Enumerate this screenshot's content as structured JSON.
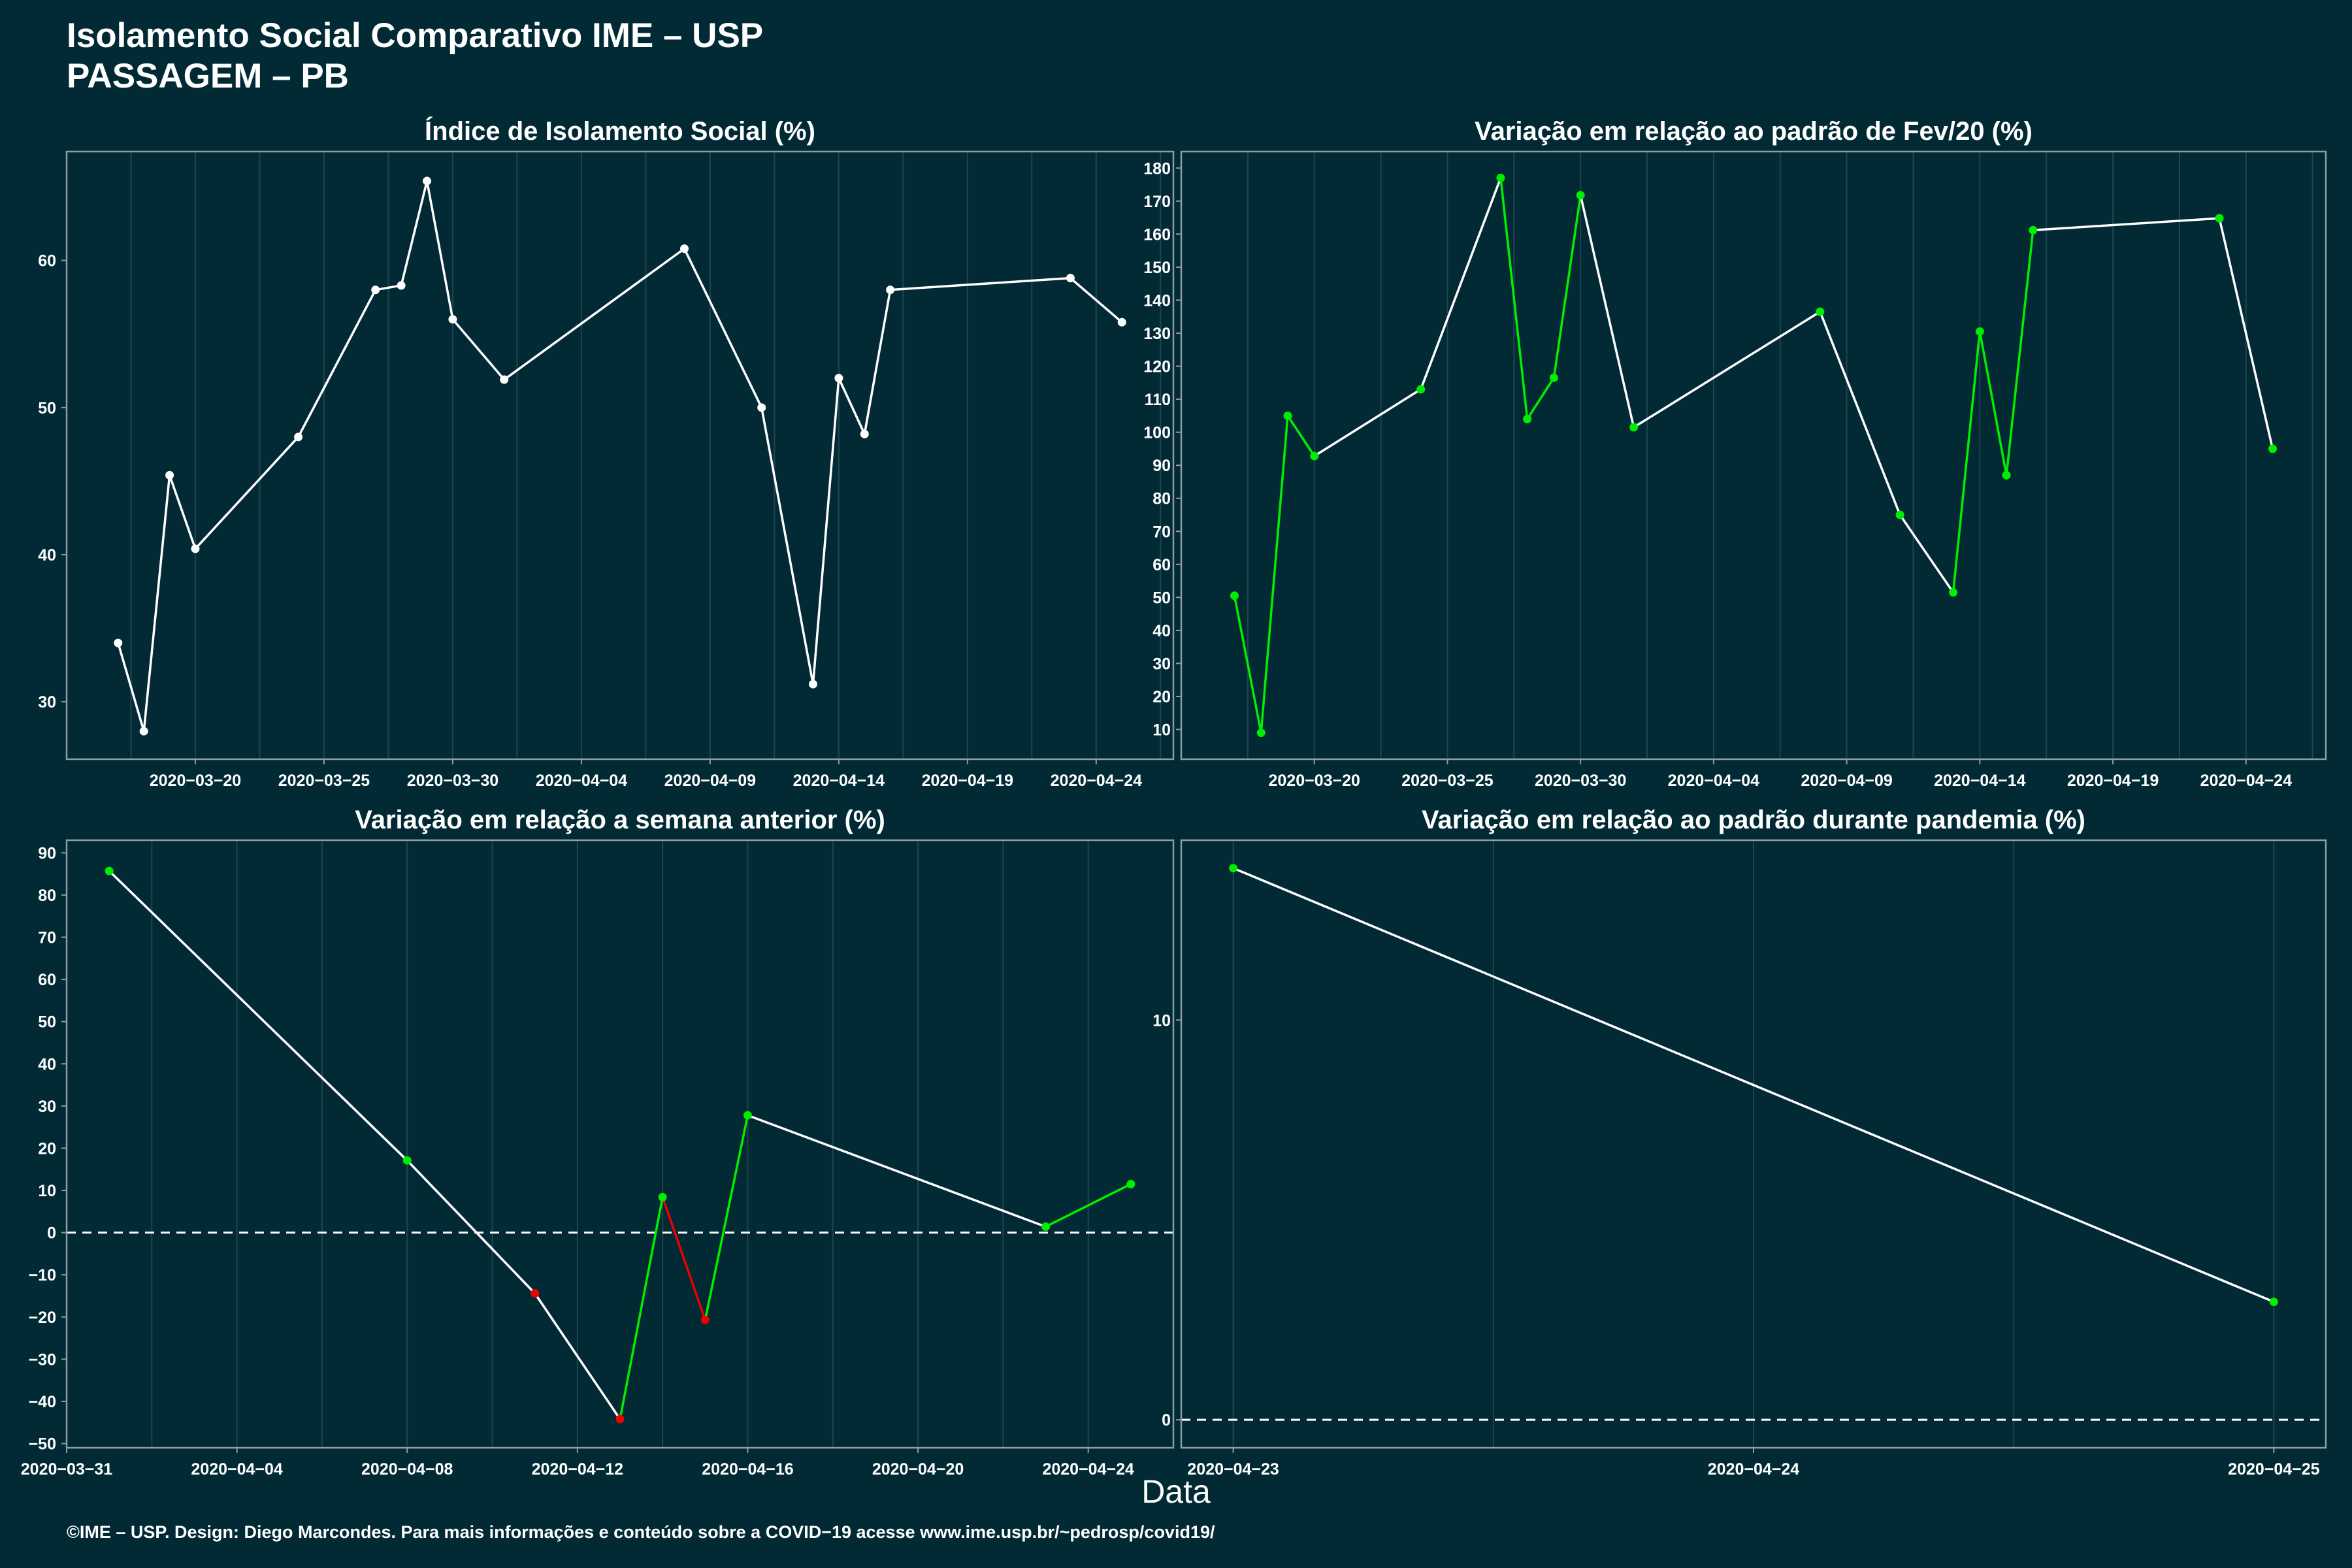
{
  "header": {
    "title_line1": "Isolamento Social Comparativo IME – USP",
    "title_line2": "PASSAGEM – PB"
  },
  "xlabel": "Data",
  "footer": "©IME – USP. Design: Diego Marcondes. Para mais informações e conteúdo sobre a COVID−19 acesse www.ime.usp.br/~pedrosp/covid19/",
  "colors": {
    "background": "#022a35",
    "grid": "#1e4650",
    "border": "#8a9ea3",
    "line_neutral": "#ffffff",
    "positive": "#00ee00",
    "negative": "#ee0000"
  },
  "chart_data": [
    {
      "type": "line",
      "title": "Índice de Isolamento Social (%)",
      "x_tick_labels": [
        "2020−03−20",
        "2020−03−25",
        "2020−03−30",
        "2020−04−04",
        "2020−04−09",
        "2020−04−14",
        "2020−04−19",
        "2020−04−24"
      ],
      "x_tick_values": [
        "2020-03-20",
        "2020-03-25",
        "2020-03-30",
        "2020-04-04",
        "2020-04-09",
        "2020-04-14",
        "2020-04-19",
        "2020-04-24"
      ],
      "xlim": [
        "2020-03-15",
        "2020-04-27"
      ],
      "y_ticks": [
        30,
        40,
        50,
        60
      ],
      "ylim": [
        26.1,
        67.4
      ],
      "zero_line": false,
      "series": [
        {
          "x": [
            "2020-03-17",
            "2020-03-18",
            "2020-03-19",
            "2020-03-20",
            "2020-03-24",
            "2020-03-27",
            "2020-03-28",
            "2020-03-29",
            "2020-03-30",
            "2020-04-01",
            "2020-04-08",
            "2020-04-11",
            "2020-04-13",
            "2020-04-14",
            "2020-04-15",
            "2020-04-16",
            "2020-04-23",
            "2020-04-25"
          ],
          "y": [
            34.0,
            28.0,
            45.4,
            40.4,
            48.0,
            58.0,
            58.3,
            65.4,
            56.0,
            51.9,
            60.8,
            50.0,
            31.2,
            52.0,
            48.2,
            58.0,
            58.8,
            55.8
          ],
          "segment_colors": [
            "neutral",
            "neutral",
            "neutral",
            "neutral",
            "neutral",
            "neutral",
            "neutral",
            "neutral",
            "neutral",
            "neutral",
            "neutral",
            "neutral",
            "neutral",
            "neutral",
            "neutral",
            "neutral",
            "neutral"
          ],
          "point_colors": [
            "neutral",
            "neutral",
            "neutral",
            "neutral",
            "neutral",
            "neutral",
            "neutral",
            "neutral",
            "neutral",
            "neutral",
            "neutral",
            "neutral",
            "neutral",
            "neutral",
            "neutral",
            "neutral",
            "neutral",
            "neutral"
          ]
        }
      ]
    },
    {
      "type": "line",
      "title": "Variação em relação ao padrão de Fev/20 (%)",
      "x_tick_labels": [
        "2020−03−20",
        "2020−03−25",
        "2020−03−30",
        "2020−04−04",
        "2020−04−09",
        "2020−04−14",
        "2020−04−19",
        "2020−04−24"
      ],
      "x_tick_values": [
        "2020-03-20",
        "2020-03-25",
        "2020-03-30",
        "2020-04-04",
        "2020-04-09",
        "2020-04-14",
        "2020-04-19",
        "2020-04-24"
      ],
      "xlim": [
        "2020-03-15",
        "2020-04-27"
      ],
      "y_ticks": [
        10,
        20,
        30,
        40,
        50,
        60,
        70,
        80,
        90,
        100,
        110,
        120,
        130,
        140,
        150,
        160,
        170,
        180
      ],
      "ylim": [
        1,
        185
      ],
      "zero_line": false,
      "series": [
        {
          "x": [
            "2020-03-17",
            "2020-03-18",
            "2020-03-19",
            "2020-03-20",
            "2020-03-24",
            "2020-03-27",
            "2020-03-28",
            "2020-03-29",
            "2020-03-30",
            "2020-04-01",
            "2020-04-08",
            "2020-04-11",
            "2020-04-13",
            "2020-04-14",
            "2020-04-15",
            "2020-04-16",
            "2020-04-23",
            "2020-04-25"
          ],
          "y": [
            50.5,
            9.0,
            105.0,
            92.8,
            113.0,
            177.0,
            104.0,
            116.5,
            171.8,
            101.5,
            136.5,
            75.0,
            51.5,
            130.5,
            87.0,
            161.2,
            164.8,
            95.0
          ],
          "segment_colors": [
            "positive",
            "positive",
            "positive",
            "neutral",
            "neutral",
            "positive",
            "positive",
            "positive",
            "neutral",
            "neutral",
            "neutral",
            "neutral",
            "positive",
            "positive",
            "positive",
            "neutral",
            "neutral"
          ],
          "point_colors": [
            "positive",
            "positive",
            "positive",
            "positive",
            "positive",
            "positive",
            "positive",
            "positive",
            "positive",
            "positive",
            "positive",
            "positive",
            "positive",
            "positive",
            "positive",
            "positive",
            "positive",
            "positive"
          ]
        }
      ]
    },
    {
      "type": "line",
      "title": "Variação em relação a semana anterior (%)",
      "x_tick_labels": [
        "2020−03−31",
        "2020−04−04",
        "2020−04−08",
        "2020−04−12",
        "2020−04−16",
        "2020−04−20",
        "2020−04−24"
      ],
      "x_tick_values": [
        "2020-03-31",
        "2020-04-04",
        "2020-04-08",
        "2020-04-12",
        "2020-04-16",
        "2020-04-20",
        "2020-04-24"
      ],
      "xlim": [
        "2020-03-31",
        "2020-04-26"
      ],
      "y_ticks": [
        -50,
        -40,
        -30,
        -20,
        -10,
        0,
        10,
        20,
        30,
        40,
        50,
        60,
        70,
        80,
        90
      ],
      "ylim": [
        -51,
        93
      ],
      "zero_line": true,
      "series": [
        {
          "x": [
            "2020-04-01",
            "2020-04-08",
            "2020-04-11",
            "2020-04-13",
            "2020-04-14",
            "2020-04-15",
            "2020-04-16",
            "2020-04-23",
            "2020-04-25"
          ],
          "y": [
            85.7,
            17.1,
            -14.4,
            -44.2,
            8.4,
            -20.7,
            27.8,
            1.4,
            11.5
          ],
          "segment_colors": [
            "neutral",
            "neutral",
            "neutral",
            "positive",
            "negative",
            "positive",
            "neutral",
            "positive"
          ],
          "point_colors": [
            "positive",
            "positive",
            "negative",
            "negative",
            "positive",
            "negative",
            "positive",
            "positive",
            "positive"
          ]
        }
      ]
    },
    {
      "type": "line",
      "title": "Variação em relação ao padrão durante pandemia (%)",
      "x_tick_labels": [
        "2020−04−23",
        "2020−04−24",
        "2020−04−25"
      ],
      "x_tick_values": [
        "2020-04-23",
        "2020-04-24",
        "2020-04-25"
      ],
      "xlim": [
        "2020-04-22.9",
        "2020-04-25.1"
      ],
      "y_ticks": [
        0,
        10
      ],
      "ylim": [
        -0.7,
        14.5
      ],
      "zero_line": true,
      "series": [
        {
          "x": [
            "2020-04-23",
            "2020-04-25"
          ],
          "y": [
            13.8,
            2.95
          ],
          "segment_colors": [
            "neutral"
          ],
          "point_colors": [
            "positive",
            "positive"
          ]
        }
      ]
    }
  ]
}
